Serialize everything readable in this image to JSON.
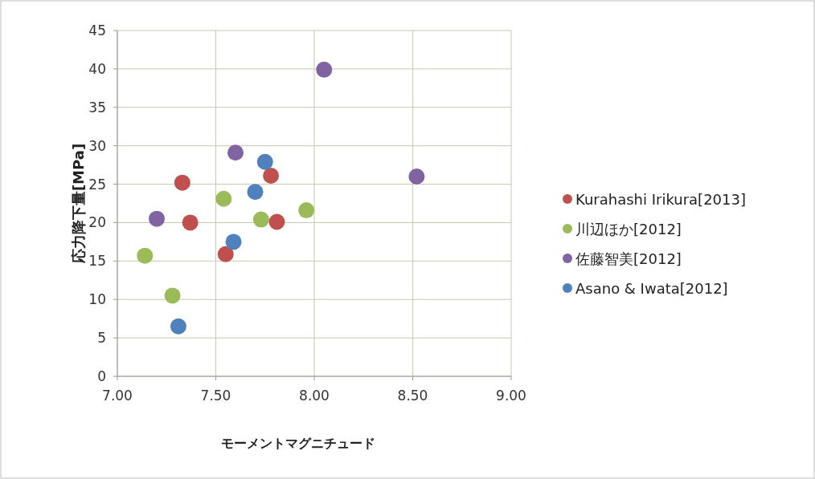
{
  "chart_data": {
    "type": "scatter",
    "xlabel": "モーメントマグニチュード",
    "ylabel": "応力降下量[MPa]",
    "xlim": [
      7,
      9
    ],
    "xticks": [
      {
        "value": 7,
        "label": "7.00"
      },
      {
        "value": 7.5,
        "label": "7.50"
      },
      {
        "value": 8,
        "label": "8.00"
      },
      {
        "value": 8.5,
        "label": "8.50"
      },
      {
        "value": 9,
        "label": "9.00"
      }
    ],
    "ylim": [
      0,
      45
    ],
    "yticks": [
      0,
      5,
      10,
      15,
      20,
      25,
      30,
      35,
      40,
      45
    ],
    "grid": true,
    "legend": "right",
    "marker": "circle",
    "series": [
      {
        "name": "Kurahashi Irikura[2013]",
        "color": "#c0504d",
        "x": [
          7.33,
          7.37,
          7.78,
          7.81,
          7.55
        ],
        "values": [
          25.2,
          20.0,
          26.1,
          20.1,
          15.9
        ]
      },
      {
        "name": "川辺ほか[2012]",
        "color": "#9bbb59",
        "x": [
          7.14,
          7.28,
          7.54,
          7.73,
          7.96
        ],
        "values": [
          15.7,
          10.5,
          23.1,
          20.4,
          21.6
        ]
      },
      {
        "name": "佐藤智美[2012]",
        "color": "#8064a2",
        "x": [
          7.2,
          7.6,
          8.52,
          8.05
        ],
        "values": [
          20.5,
          29.1,
          26.0,
          39.9
        ]
      },
      {
        "name": "Asano & Iwata[2012]",
        "color": "#4f81bd",
        "x": [
          7.75,
          7.7,
          7.59,
          7.31
        ],
        "values": [
          27.9,
          24.0,
          17.5,
          6.5
        ]
      }
    ]
  }
}
